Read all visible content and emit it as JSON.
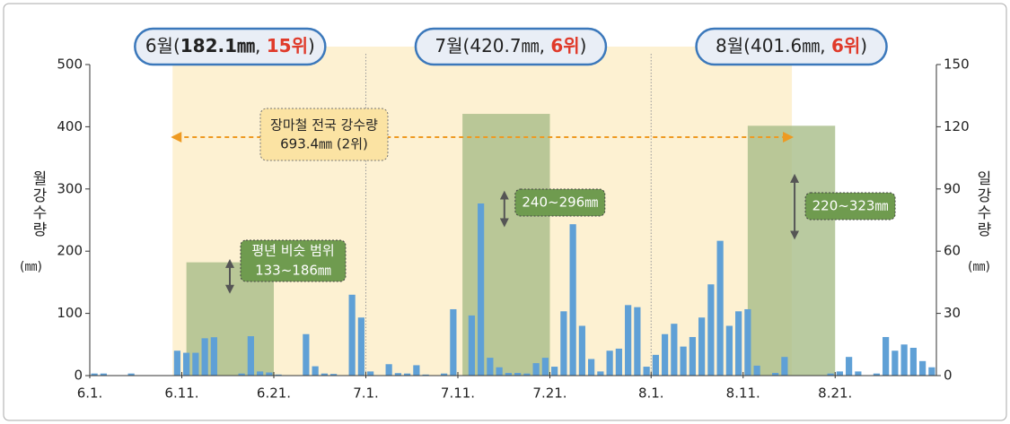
{
  "chart_data": {
    "type": "bar",
    "categories": [
      "6.1.",
      null,
      null,
      null,
      null,
      null,
      null,
      null,
      null,
      null,
      "6.11.",
      null,
      null,
      null,
      null,
      null,
      null,
      null,
      null,
      null,
      "6.21.",
      null,
      null,
      null,
      null,
      null,
      null,
      null,
      null,
      null,
      "7.1.",
      null,
      null,
      null,
      null,
      null,
      null,
      null,
      null,
      null,
      "7.11.",
      null,
      null,
      null,
      null,
      null,
      null,
      null,
      null,
      null,
      "7.21.",
      null,
      null,
      null,
      null,
      null,
      null,
      null,
      null,
      null,
      null,
      "8.1.",
      null,
      null,
      null,
      null,
      null,
      null,
      null,
      null,
      null,
      "8.11.",
      null,
      null,
      null,
      null,
      null,
      null,
      null,
      null,
      null,
      "8.21.",
      null,
      null,
      null,
      null,
      null,
      null,
      null,
      null,
      null,
      null
    ],
    "series": [
      {
        "name": "일강수량",
        "color": "#5fa0d6",
        "axis": "y2",
        "values": [
          1,
          1,
          0,
          0,
          1,
          0,
          0,
          0,
          0,
          12,
          11,
          11,
          18,
          18.5,
          0,
          0,
          1,
          19,
          2,
          1.5,
          0.5,
          0,
          0,
          20,
          4.5,
          1,
          0.8,
          0,
          39,
          28,
          2,
          0,
          5.5,
          1.2,
          1,
          5,
          0.5,
          0,
          1,
          32,
          0,
          29,
          83,
          8.6,
          4,
          1.3,
          1.3,
          1,
          6,
          8.6,
          4.3,
          31,
          73,
          24,
          8,
          2,
          12,
          13,
          34,
          33,
          4.3,
          10,
          20,
          25,
          14,
          18.6,
          28,
          44,
          65,
          24,
          31,
          32,
          4.8,
          0,
          1.3,
          9,
          0,
          0,
          0,
          0,
          1,
          2,
          9,
          2,
          0,
          1,
          18.6,
          12,
          15,
          13.4,
          7,
          4
        ]
      }
    ],
    "monthly": {
      "name": "월강수량",
      "categories": [
        "6월",
        "7월",
        "8월"
      ],
      "values": [
        182.1,
        420.7,
        401.6
      ],
      "value_labels": [
        "182.1㎜",
        "420.7㎜",
        "401.6㎜"
      ],
      "ranks": [
        "15위",
        "6위",
        "6위"
      ],
      "brackets": [
        "(",
        ", ",
        ")"
      ],
      "color": "#a8bd88"
    },
    "normal_range": {
      "label": "평년 비슷 범위",
      "ranges": [
        [
          133,
          186
        ],
        [
          240,
          296
        ],
        [
          220,
          323
        ]
      ],
      "range_labels": [
        "133~186㎜",
        "240~296㎜",
        "220~323㎜"
      ]
    },
    "monsoon": {
      "label": "장마철 전국 강수량",
      "value": 693.4,
      "value_label": "693.4㎜ (2위)"
    },
    "y_label": "월강수량",
    "y2_label": "일강수량",
    "y_unit": "(㎜)",
    "ylim": [
      0,
      500
    ],
    "yticks": [
      0,
      100,
      200,
      300,
      400,
      500
    ],
    "y2lim": [
      0,
      150
    ],
    "y2ticks": [
      0,
      30,
      60,
      90,
      120,
      150
    ]
  }
}
